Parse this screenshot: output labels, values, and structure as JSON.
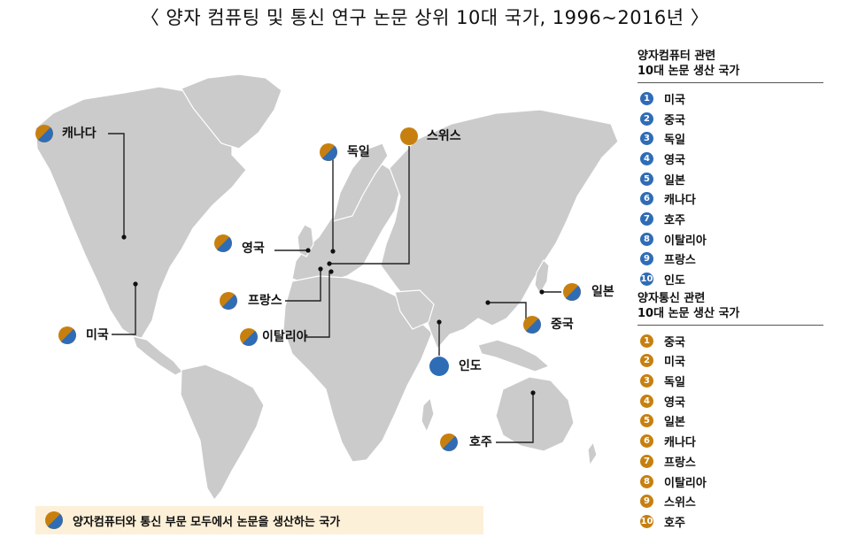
{
  "title": "〈 양자 컴퓨팅 및 통신 연구 논문 상위 10대 국가, 1996~2016년 〉",
  "colors": {
    "quantum_computing": "#2f6cb6",
    "quantum_communication": "#c7800f",
    "land": "#cbcbcb"
  },
  "map_labels": {
    "canada": "캐나다",
    "germany": "독일",
    "switzerland": "스위스",
    "uk": "영국",
    "france": "프랑스",
    "italy": "이탈리아",
    "usa": "미국",
    "japan": "일본",
    "china": "중국",
    "india": "인도",
    "australia": "호주"
  },
  "legend_computing": {
    "heading_line1": "양자컴퓨터 관련",
    "heading_line2": "10대 논문 생산 국가",
    "items": [
      {
        "rank": "1",
        "country": "미국"
      },
      {
        "rank": "2",
        "country": "중국"
      },
      {
        "rank": "3",
        "country": "독일"
      },
      {
        "rank": "4",
        "country": "영국"
      },
      {
        "rank": "5",
        "country": "일본"
      },
      {
        "rank": "6",
        "country": "캐나다"
      },
      {
        "rank": "7",
        "country": "호주"
      },
      {
        "rank": "8",
        "country": "이탈리아"
      },
      {
        "rank": "9",
        "country": "프랑스"
      },
      {
        "rank": "10",
        "country": "인도"
      }
    ]
  },
  "legend_communication": {
    "heading_line1": "양자통신 관련",
    "heading_line2": "10대 논문 생산 국가",
    "items": [
      {
        "rank": "1",
        "country": "중국"
      },
      {
        "rank": "2",
        "country": "미국"
      },
      {
        "rank": "3",
        "country": "독일"
      },
      {
        "rank": "4",
        "country": "영국"
      },
      {
        "rank": "5",
        "country": "일본"
      },
      {
        "rank": "6",
        "country": "캐나다"
      },
      {
        "rank": "7",
        "country": "프랑스"
      },
      {
        "rank": "8",
        "country": "이탈리아"
      },
      {
        "rank": "9",
        "country": "스위스"
      },
      {
        "rank": "10",
        "country": "호주"
      }
    ]
  },
  "footer_note": "양자컴퓨터와 통신 부문 모두에서 논문을 생산하는 국가"
}
